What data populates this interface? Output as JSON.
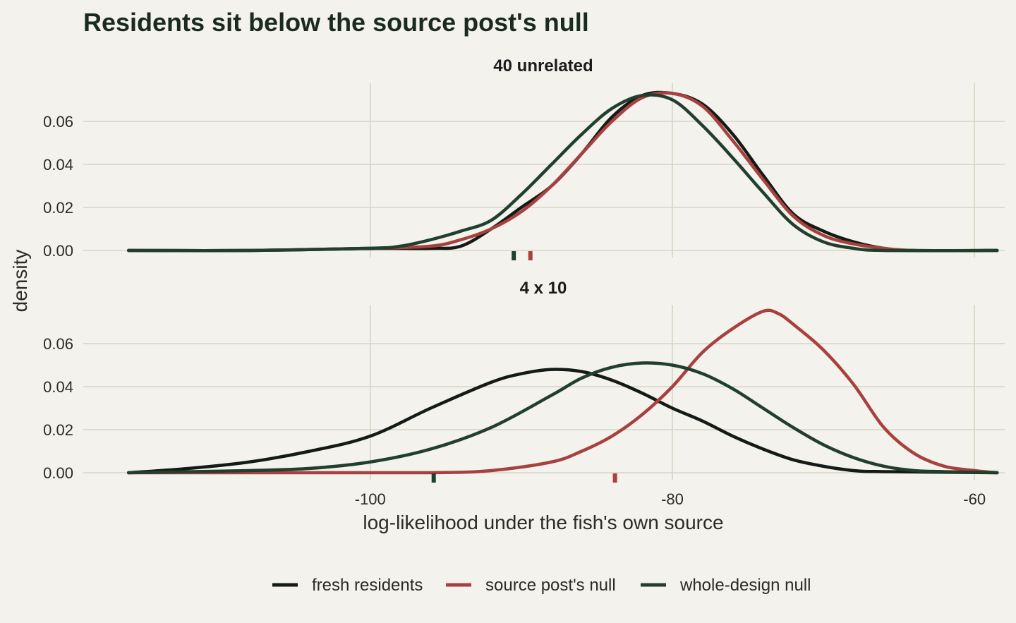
{
  "chart_data": {
    "type": "density",
    "title": "Residents sit below the source post's null",
    "xlabel": "log-likelihood under the fish's own source",
    "ylabel": "density",
    "xlim": [
      -119,
      -58
    ],
    "x_ticks": [
      -100,
      -80,
      -60
    ],
    "y_ticks": [
      0,
      0.02,
      0.04,
      0.06
    ],
    "grid": true,
    "legend": {
      "position": "bottom",
      "entries": [
        {
          "name": "fresh residents",
          "color": "#141a16"
        },
        {
          "name": "source post's null",
          "color": "#a84040"
        },
        {
          "name": "whole-design null",
          "color": "#213f2d"
        }
      ]
    },
    "panels": [
      {
        "label": "40 unrelated",
        "ylim": [
          0,
          0.078
        ],
        "series": [
          {
            "name": "fresh residents",
            "color": "#141a16",
            "points": [
              [
                -116,
                0
              ],
              [
                -108,
                0
              ],
              [
                -100,
                0.001
              ],
              [
                -96,
                0.001
              ],
              [
                -94,
                0.002
              ],
              [
                -92,
                0.01
              ],
              [
                -90,
                0.02
              ],
              [
                -88,
                0.03
              ],
              [
                -86,
                0.045
              ],
              [
                -84,
                0.062
              ],
              [
                -82,
                0.072
              ],
              [
                -80,
                0.073
              ],
              [
                -78,
                0.068
              ],
              [
                -76,
                0.054
              ],
              [
                -74,
                0.035
              ],
              [
                -72,
                0.017
              ],
              [
                -70,
                0.009
              ],
              [
                -68,
                0.004
              ],
              [
                -66,
                0.001
              ],
              [
                -64,
                0
              ],
              [
                -58.5,
                0
              ]
            ]
          },
          {
            "name": "source post's null",
            "color": "#a84040",
            "points": [
              [
                -116,
                0
              ],
              [
                -108,
                0
              ],
              [
                -100,
                0.001
              ],
              [
                -96,
                0.002
              ],
              [
                -94,
                0.005
              ],
              [
                -92,
                0.01
              ],
              [
                -90,
                0.018
              ],
              [
                -88,
                0.03
              ],
              [
                -86,
                0.045
              ],
              [
                -84,
                0.06
              ],
              [
                -82,
                0.071
              ],
              [
                -80,
                0.073
              ],
              [
                -78,
                0.067
              ],
              [
                -76,
                0.051
              ],
              [
                -74,
                0.033
              ],
              [
                -72,
                0.016
              ],
              [
                -70,
                0.007
              ],
              [
                -68,
                0.003
              ],
              [
                -66,
                0.001
              ],
              [
                -64,
                0
              ],
              [
                -58.5,
                0
              ]
            ]
          },
          {
            "name": "whole-design null",
            "color": "#213f2d",
            "points": [
              [
                -116,
                0
              ],
              [
                -108,
                0
              ],
              [
                -100,
                0.001
              ],
              [
                -98,
                0.002
              ],
              [
                -96,
                0.005
              ],
              [
                -94,
                0.009
              ],
              [
                -92,
                0.014
              ],
              [
                -90,
                0.026
              ],
              [
                -88,
                0.04
              ],
              [
                -86,
                0.054
              ],
              [
                -84,
                0.066
              ],
              [
                -82,
                0.072
              ],
              [
                -80,
                0.07
              ],
              [
                -78,
                0.058
              ],
              [
                -76,
                0.043
              ],
              [
                -74,
                0.027
              ],
              [
                -72,
                0.012
              ],
              [
                -70,
                0.004
              ],
              [
                -68,
                0.001
              ],
              [
                -66,
                0
              ],
              [
                -58.5,
                0
              ]
            ]
          }
        ],
        "rug": [
          {
            "series": "whole-design null",
            "x": -90.5,
            "color": "#213f2d"
          },
          {
            "series": "source post's null",
            "x": -89.4,
            "color": "#a84040"
          }
        ]
      },
      {
        "label": "4 x 10",
        "ylim": [
          0,
          0.078
        ],
        "series": [
          {
            "name": "fresh residents",
            "color": "#141a16",
            "points": [
              [
                -116,
                0
              ],
              [
                -112,
                0.002
              ],
              [
                -108,
                0.005
              ],
              [
                -104,
                0.01
              ],
              [
                -100,
                0.017
              ],
              [
                -96,
                0.03
              ],
              [
                -92,
                0.042
              ],
              [
                -90,
                0.046
              ],
              [
                -88,
                0.048
              ],
              [
                -86,
                0.047
              ],
              [
                -84,
                0.043
              ],
              [
                -82,
                0.037
              ],
              [
                -80,
                0.03
              ],
              [
                -78,
                0.024
              ],
              [
                -76,
                0.017
              ],
              [
                -74,
                0.011
              ],
              [
                -72,
                0.006
              ],
              [
                -70,
                0.003
              ],
              [
                -68,
                0.001
              ],
              [
                -66,
                0.0005
              ],
              [
                -58.5,
                0
              ]
            ]
          },
          {
            "name": "source post's null",
            "color": "#a84040",
            "points": [
              [
                -116,
                0
              ],
              [
                -104,
                0
              ],
              [
                -96,
                0
              ],
              [
                -92,
                0.001
              ],
              [
                -88,
                0.005
              ],
              [
                -86,
                0.01
              ],
              [
                -84,
                0.017
              ],
              [
                -82,
                0.027
              ],
              [
                -80,
                0.04
              ],
              [
                -78,
                0.056
              ],
              [
                -76,
                0.067
              ],
              [
                -74,
                0.075
              ],
              [
                -73,
                0.074
              ],
              [
                -72,
                0.069
              ],
              [
                -70,
                0.057
              ],
              [
                -68,
                0.041
              ],
              [
                -66,
                0.021
              ],
              [
                -64,
                0.009
              ],
              [
                -62,
                0.003
              ],
              [
                -60,
                0.001
              ],
              [
                -58.5,
                0
              ]
            ]
          },
          {
            "name": "whole-design null",
            "color": "#213f2d",
            "points": [
              [
                -116,
                0
              ],
              [
                -108,
                0.001
              ],
              [
                -104,
                0.002
              ],
              [
                -100,
                0.005
              ],
              [
                -96,
                0.011
              ],
              [
                -92,
                0.021
              ],
              [
                -88,
                0.036
              ],
              [
                -86,
                0.044
              ],
              [
                -84,
                0.049
              ],
              [
                -82,
                0.051
              ],
              [
                -80,
                0.05
              ],
              [
                -78,
                0.046
              ],
              [
                -76,
                0.039
              ],
              [
                -74,
                0.03
              ],
              [
                -72,
                0.021
              ],
              [
                -70,
                0.013
              ],
              [
                -68,
                0.007
              ],
              [
                -66,
                0.003
              ],
              [
                -64,
                0.001
              ],
              [
                -62,
                0.0005
              ],
              [
                -58.5,
                0
              ]
            ]
          }
        ],
        "rug": [
          {
            "series": "whole-design null",
            "x": -95.8,
            "color": "#213f2d"
          },
          {
            "series": "source post's null",
            "x": -83.8,
            "color": "#a84040"
          }
        ]
      }
    ]
  }
}
